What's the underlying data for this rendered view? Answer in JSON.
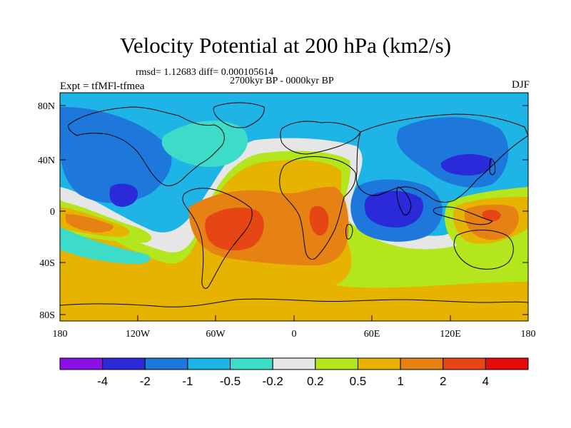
{
  "title": "Velocity Potential at 200 hPa (km2/s)",
  "stats": "rmsd= 1.12683 diff= 0.000105614",
  "period": "2700kyr BP - 0000kyr BP",
  "experiment": "Expt = tfMFl-tfmea",
  "season": "DJF",
  "y_ticks": [
    "80N",
    "40N",
    "0",
    "40S",
    "80S"
  ],
  "x_ticks": [
    "180",
    "120W",
    "60W",
    "0",
    "60E",
    "120E",
    "180"
  ],
  "colorbar": {
    "labels": [
      "-4",
      "-2",
      "-1",
      "-0.5",
      "-0.2",
      "0.2",
      "0.5",
      "1",
      "2",
      "4"
    ],
    "colors": [
      "#8a10e6",
      "#2a2ad8",
      "#1e78dc",
      "#1eb4e6",
      "#3cdcc8",
      "#e6e6e6",
      "#b4e61e",
      "#e6b400",
      "#e68214",
      "#e64614",
      "#e60a0a"
    ]
  }
}
